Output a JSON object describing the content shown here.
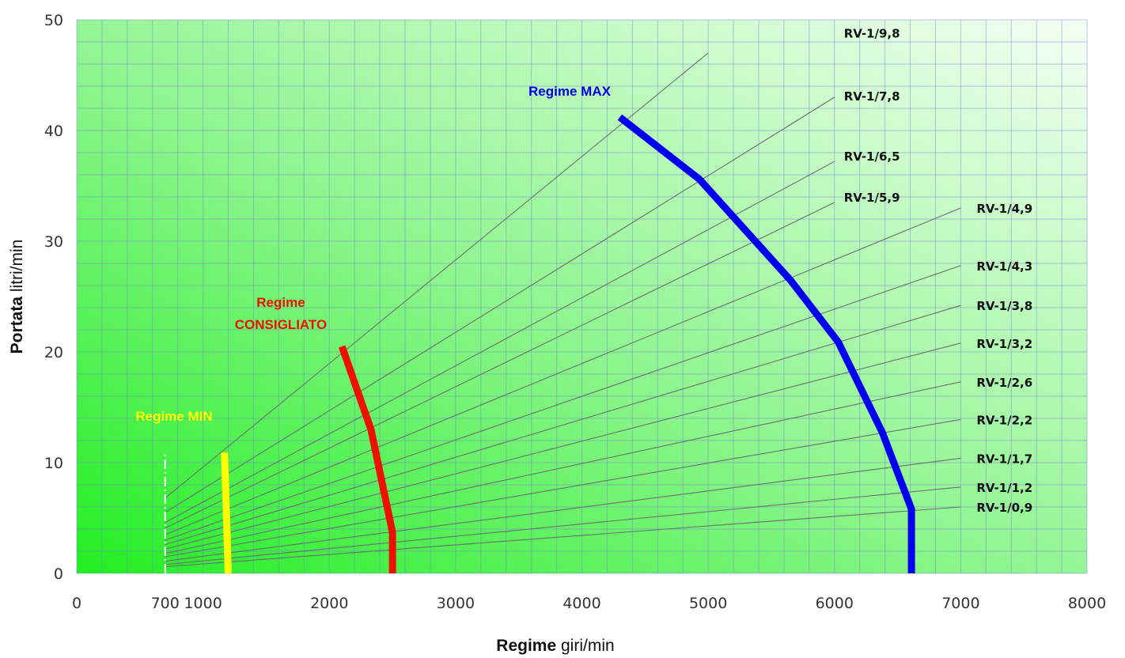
{
  "chart_data": {
    "type": "line",
    "title": "",
    "xlabel_bold": "Regime",
    "xlabel_unit": "giri/min",
    "ylabel_bold": "Portata",
    "ylabel_unit": "litri/min",
    "xlim": [
      0,
      8000
    ],
    "ylim": [
      0,
      50
    ],
    "x_ticks": [
      0,
      700,
      1000,
      2000,
      3000,
      4000,
      5000,
      6000,
      7000,
      8000
    ],
    "y_ticks": [
      0,
      10,
      20,
      30,
      40,
      50
    ],
    "grid": true,
    "pump_rays": [
      {
        "name": "RV-1/9,8",
        "x0": 700,
        "y0": 6.8,
        "x1": 5000,
        "y1": 47.0
      },
      {
        "name": "RV-1/7,8",
        "x0": 700,
        "y0": 5.5,
        "x1": 6000,
        "y1": 43.0
      },
      {
        "name": "RV-1/6,5",
        "x0": 700,
        "y0": 4.6,
        "x1": 6000,
        "y1": 37.2
      },
      {
        "name": "RV-1/5,9",
        "x0": 700,
        "y0": 4.1,
        "x1": 6000,
        "y1": 33.5
      },
      {
        "name": "RV-1/4,9",
        "x0": 700,
        "y0": 3.5,
        "x1": 7000,
        "y1": 33.0
      },
      {
        "name": "RV-1/4,3",
        "x0": 700,
        "y0": 3.0,
        "x1": 7000,
        "y1": 27.8
      },
      {
        "name": "RV-1/3,8",
        "x0": 700,
        "y0": 2.6,
        "x1": 7000,
        "y1": 24.2
      },
      {
        "name": "RV-1/3,2",
        "x0": 700,
        "y0": 2.2,
        "x1": 7000,
        "y1": 20.8
      },
      {
        "name": "RV-1/2,6",
        "x0": 700,
        "y0": 1.8,
        "x1": 7000,
        "y1": 17.3
      },
      {
        "name": "RV-1/2,2",
        "x0": 700,
        "y0": 1.5,
        "x1": 7000,
        "y1": 13.9
      },
      {
        "name": "RV-1/1,7",
        "x0": 700,
        "y0": 1.1,
        "x1": 7000,
        "y1": 10.4
      },
      {
        "name": "RV-1/1,2",
        "x0": 700,
        "y0": 0.8,
        "x1": 7000,
        "y1": 7.8
      },
      {
        "name": "RV-1/0,9",
        "x0": 700,
        "y0": 0.6,
        "x1": 7000,
        "y1": 6.0
      }
    ],
    "series": [
      {
        "name": "Regime MIN",
        "color": "#ffff00",
        "points": [
          [
            1170,
            10.9
          ],
          [
            1200,
            0
          ]
        ]
      },
      {
        "name": "Regime CONSIGLIATO",
        "color": "#ee1100",
        "points": [
          [
            2100,
            20.5
          ],
          [
            2330,
            13.0
          ],
          [
            2500,
            3.7
          ],
          [
            2500,
            0
          ]
        ]
      },
      {
        "name": "Regime MAX",
        "color": "#0000ee",
        "points": [
          [
            4300,
            41.2
          ],
          [
            4930,
            35.6
          ],
          [
            5650,
            26.5
          ],
          [
            6030,
            20.9
          ],
          [
            6380,
            12.7
          ],
          [
            6610,
            5.8
          ],
          [
            6610,
            0
          ]
        ]
      }
    ],
    "min_marker": {
      "x": 700,
      "y_top": 10.9
    }
  },
  "annotations": {
    "regime_min": "Regime MIN",
    "regime_consigliato_1": "Regime",
    "regime_consigliato_2": "CONSIGLIATO",
    "regime_max": "Regime MAX"
  },
  "colors": {
    "bg_left": "#22ee22",
    "bg_right": "#f4fff4",
    "grid": "#6f7fd8",
    "ray": "#6a7070"
  }
}
